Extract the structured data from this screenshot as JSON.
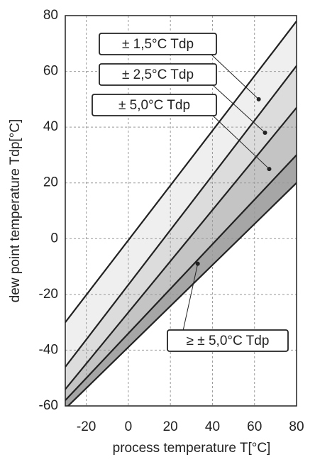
{
  "chart_data": {
    "type": "band",
    "x_label": "process temperature  T[°C]",
    "y_label": "dew point temperature  Tdp[°C]",
    "x": [
      -30,
      80
    ],
    "line_color": "#222222",
    "series": [
      {
        "color": "#efefef",
        "values": [
          -30,
          78
        ]
      },
      {
        "color": "#dcdcdc",
        "values": [
          -46,
          62
        ]
      },
      {
        "color": "#c4c4c4",
        "values": [
          -54,
          47
        ]
      },
      {
        "color": "#a6a6a6",
        "values": [
          -58,
          30
        ]
      },
      {
        "values": [
          -61,
          20
        ]
      }
    ],
    "annotations": [
      {
        "text": "± 1,5°C Tdp",
        "x": 62,
        "y": 50
      },
      {
        "text": "± 2,5°C Tdp",
        "x": 65,
        "y": 38
      },
      {
        "text": "± 5,0°C Tdp",
        "x": 67,
        "y": 25
      },
      {
        "text": "≥ ± 5,0°C Tdp",
        "x": 33,
        "y": -9
      }
    ],
    "xlim": [
      -30,
      80
    ],
    "xticks": [
      -20,
      0,
      20,
      40,
      60,
      80
    ],
    "ylim": [
      -60,
      80
    ],
    "yticks": [
      -60,
      -40,
      -20,
      0,
      20,
      40,
      60,
      80
    ],
    "grid": true
  }
}
